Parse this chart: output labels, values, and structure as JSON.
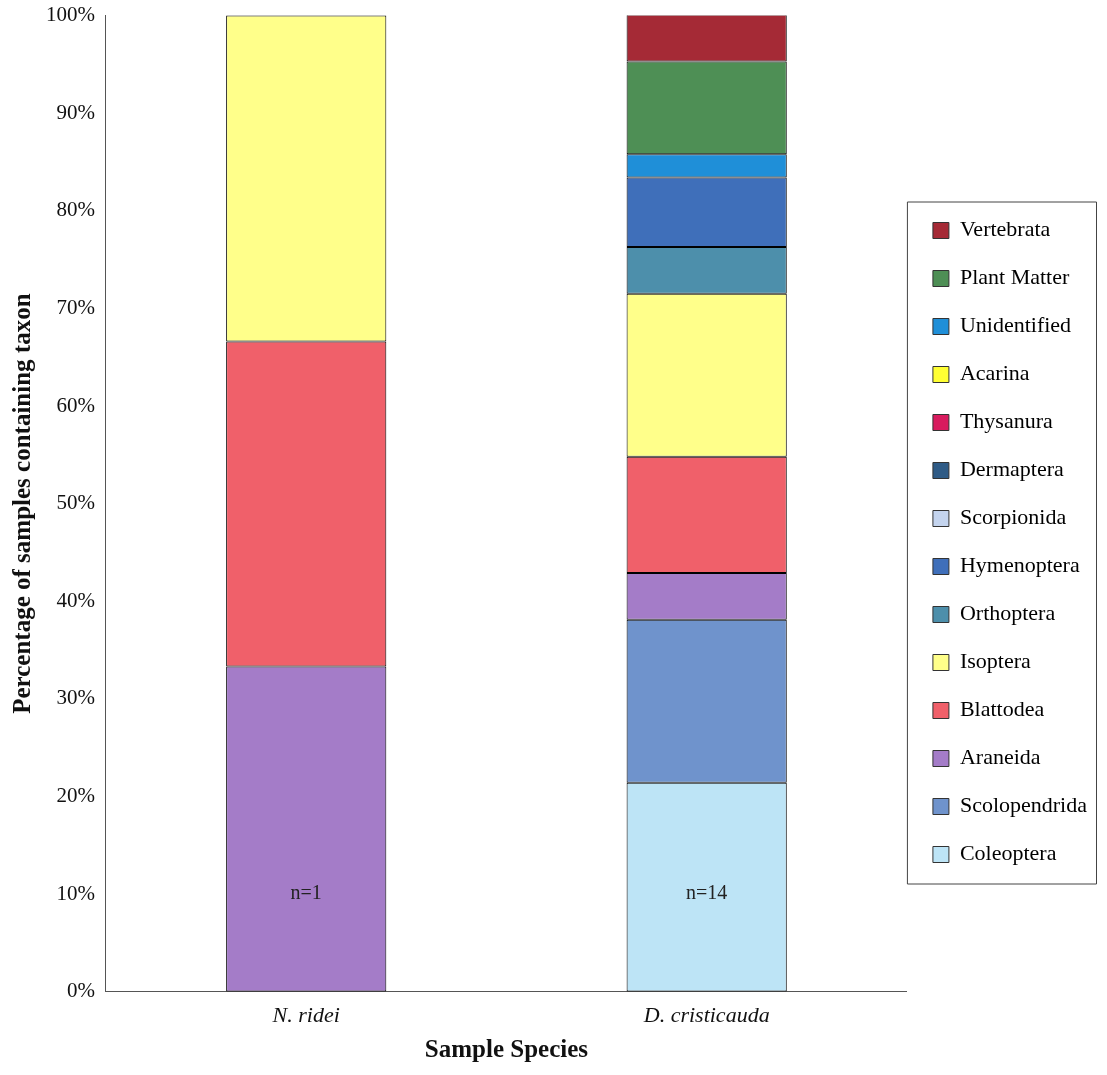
{
  "chart_data": {
    "type": "bar",
    "stacked": true,
    "xlabel": "Sample Species",
    "ylabel": "Percentage of samples containing taxon",
    "categories": [
      "N. ridei",
      "D. cristicauda"
    ],
    "ylim": [
      0,
      100
    ],
    "yticks": [
      {
        "value": 0,
        "label": "0%"
      },
      {
        "value": 10,
        "label": "10%"
      },
      {
        "value": 20,
        "label": "20%"
      },
      {
        "value": 30,
        "label": "30%"
      },
      {
        "value": 40,
        "label": "40%"
      },
      {
        "value": 50,
        "label": "50%"
      },
      {
        "value": 60,
        "label": "60%"
      },
      {
        "value": 70,
        "label": "70%"
      },
      {
        "value": 80,
        "label": "80%"
      },
      {
        "value": 90,
        "label": "90%"
      },
      {
        "value": 100,
        "label": "100%"
      }
    ],
    "grid": false,
    "legend": "right",
    "series": [
      {
        "name": "Coleoptera",
        "color": "#bde4f6",
        "values": [
          0,
          21.4
        ]
      },
      {
        "name": "Scolopendrida",
        "color": "#6f93cc",
        "values": [
          0,
          16.7
        ]
      },
      {
        "name": "Araneida",
        "color": "#a47cc8",
        "values": [
          33.3,
          4.8
        ]
      },
      {
        "name": "Blattodea",
        "color": "#f0606a",
        "values": [
          33.3,
          11.9
        ]
      },
      {
        "name": "Isoptera",
        "color": "#ffff8a",
        "values": [
          33.4,
          16.7
        ]
      },
      {
        "name": "Orthoptera",
        "color": "#4d8fab",
        "values": [
          0,
          4.8
        ]
      },
      {
        "name": "Hymenoptera",
        "color": "#3f6fba",
        "values": [
          0,
          7.1
        ]
      },
      {
        "name": "Scorpionida",
        "color": "#c4d4ee",
        "values": [
          0,
          0
        ]
      },
      {
        "name": "Dermaptera",
        "color": "#2f5b86",
        "values": [
          0,
          0
        ]
      },
      {
        "name": "Thysanura",
        "color": "#d81b5e",
        "values": [
          0,
          0
        ]
      },
      {
        "name": "Acarina",
        "color": "#ffff33",
        "values": [
          0,
          0
        ]
      },
      {
        "name": "Unidentified",
        "color": "#1f8fd8",
        "values": [
          0,
          2.4
        ]
      },
      {
        "name": "Plant Matter",
        "color": "#4e8f55",
        "values": [
          0,
          9.5
        ]
      },
      {
        "name": "Vertebrata",
        "color": "#a52a36",
        "values": [
          0,
          4.8
        ]
      }
    ],
    "annotations": [
      "n=1",
      "n=14"
    ]
  }
}
